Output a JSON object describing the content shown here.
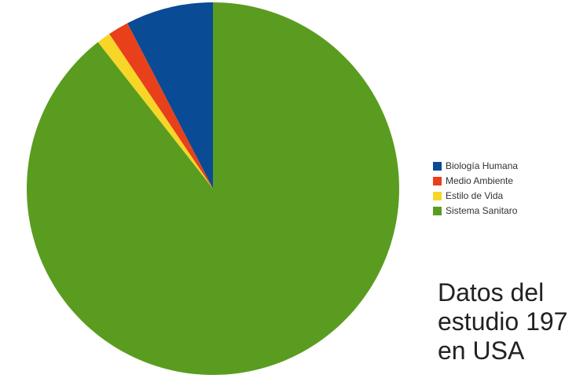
{
  "chart_data": {
    "type": "pie",
    "categories": [
      "Biología Humana",
      "Medio Ambiente",
      "Estilo de Vida",
      "Sistema Sanitaro"
    ],
    "values": [
      7.6,
      1.8,
      1.2,
      89.4
    ],
    "colors": [
      "#0a4b96",
      "#e8401a",
      "#f7d628",
      "#5a9c1f"
    ],
    "start_angle": "12 o'clock",
    "direction": "counter-clockwise",
    "legend_position": "right"
  },
  "legend": {
    "items": [
      {
        "label": "Biología Humana",
        "color": "#0a4b96"
      },
      {
        "label": "Medio Ambiente",
        "color": "#e8401a"
      },
      {
        "label": "Estilo de Vida",
        "color": "#f7d628"
      },
      {
        "label": "Sistema Sanitaro",
        "color": "#5a9c1f"
      }
    ]
  },
  "caption": {
    "line1": "Datos del",
    "line2": "estudio 197",
    "line3": "en USA"
  }
}
